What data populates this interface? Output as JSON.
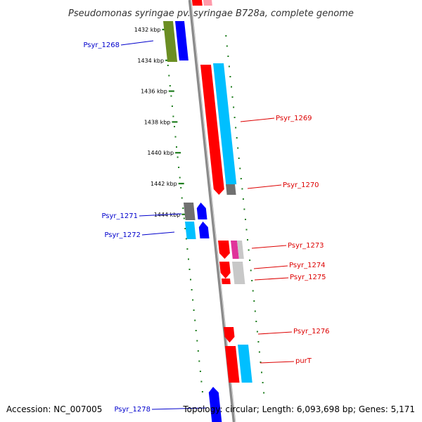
{
  "title": "Pseudomonas syringae pv. syringae B728a, complete genome",
  "footer": {
    "accession": "Accession: NC_007005",
    "stats": "Topology: circular; Length: 6,093,698 bp; Genes: 5,171"
  },
  "colors": {
    "backbone": "#8a8a8a",
    "tick": "#1e7d1e",
    "left_label": "#0000cc",
    "right_label": "#dd0000",
    "red": "#ff0000",
    "cyan": "#00bfff",
    "blue": "#0000ff",
    "olive": "#6b8e23",
    "gray": "#707070",
    "lightgray": "#c8c8c8",
    "magenta": "#e0339a",
    "lightpink": "#ff9aaa"
  },
  "kbp_ticks": [
    {
      "label": "1432 kbp",
      "kbp": 1432
    },
    {
      "label": "1434 kbp",
      "kbp": 1434
    },
    {
      "label": "1436 kbp",
      "kbp": 1436
    },
    {
      "label": "1438 kbp",
      "kbp": 1438
    },
    {
      "label": "1440 kbp",
      "kbp": 1440
    },
    {
      "label": "1442 kbp",
      "kbp": 1442
    },
    {
      "label": "1444 kbp",
      "kbp": 1444
    }
  ],
  "gene_labels": [
    {
      "text": "Psyr_1268",
      "side": "left"
    },
    {
      "text": "Psyr_1269",
      "side": "right"
    },
    {
      "text": "Psyr_1270",
      "side": "right"
    },
    {
      "text": "Psyr_1271",
      "side": "left"
    },
    {
      "text": "Psyr_1272",
      "side": "left"
    },
    {
      "text": "Psyr_1273",
      "side": "right"
    },
    {
      "text": "Psyr_1274",
      "side": "right"
    },
    {
      "text": "Psyr_1275",
      "side": "right"
    },
    {
      "text": "Psyr_1276",
      "side": "right"
    },
    {
      "text": "purT",
      "side": "right"
    },
    {
      "text": "Psyr_1278",
      "side": "left"
    }
  ]
}
